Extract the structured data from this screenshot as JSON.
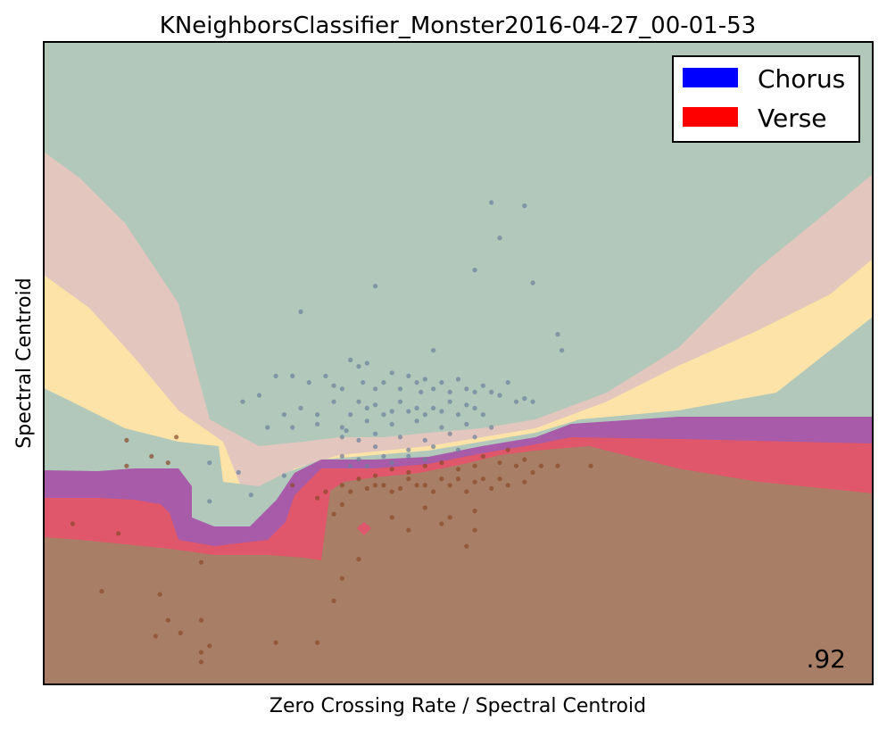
{
  "chart_data": {
    "type": "scatter",
    "title": "KNeighborsClassifier_Monster2016-04-27_00-01-53",
    "xlabel": "Zero Crossing Rate / Spectral Centroid",
    "ylabel": "Spectral Centroid",
    "xlim": [
      0,
      1
    ],
    "ylim": [
      0,
      1
    ],
    "grid": false,
    "ticks": false,
    "legend": {
      "placement": "top-right",
      "entries": [
        {
          "label": "Chorus",
          "color": "#0000ff"
        },
        {
          "label": "Verse",
          "color": "#ff0000"
        }
      ]
    },
    "score": ".92",
    "region_colors": {
      "outer_teal": "#b1c8ba",
      "pink": "#e3c6bd",
      "yellow": "#fde3a7",
      "purple": "#a75ba8",
      "red": "#e0566a",
      "brown": "#a87e66"
    },
    "series": [
      {
        "name": "Chorus",
        "color": "#6b7f9e",
        "points": [
          [
            0.54,
            0.75
          ],
          [
            0.58,
            0.745
          ],
          [
            0.55,
            0.695
          ],
          [
            0.52,
            0.645
          ],
          [
            0.4,
            0.62
          ],
          [
            0.59,
            0.625
          ],
          [
            0.31,
            0.58
          ],
          [
            0.47,
            0.52
          ],
          [
            0.62,
            0.545
          ],
          [
            0.625,
            0.52
          ],
          [
            0.28,
            0.48
          ],
          [
            0.3,
            0.48
          ],
          [
            0.32,
            0.47
          ],
          [
            0.34,
            0.48
          ],
          [
            0.35,
            0.465
          ],
          [
            0.36,
            0.46
          ],
          [
            0.37,
            0.505
          ],
          [
            0.38,
            0.495
          ],
          [
            0.385,
            0.47
          ],
          [
            0.39,
            0.5
          ],
          [
            0.4,
            0.46
          ],
          [
            0.41,
            0.47
          ],
          [
            0.42,
            0.485
          ],
          [
            0.43,
            0.46
          ],
          [
            0.44,
            0.48
          ],
          [
            0.45,
            0.47
          ],
          [
            0.455,
            0.455
          ],
          [
            0.46,
            0.475
          ],
          [
            0.47,
            0.46
          ],
          [
            0.48,
            0.47
          ],
          [
            0.49,
            0.455
          ],
          [
            0.5,
            0.475
          ],
          [
            0.51,
            0.46
          ],
          [
            0.52,
            0.455
          ],
          [
            0.53,
            0.465
          ],
          [
            0.54,
            0.455
          ],
          [
            0.55,
            0.45
          ],
          [
            0.56,
            0.47
          ],
          [
            0.57,
            0.44
          ],
          [
            0.58,
            0.445
          ],
          [
            0.59,
            0.44
          ],
          [
            0.24,
            0.44
          ],
          [
            0.26,
            0.45
          ],
          [
            0.29,
            0.42
          ],
          [
            0.31,
            0.43
          ],
          [
            0.33,
            0.42
          ],
          [
            0.35,
            0.44
          ],
          [
            0.37,
            0.42
          ],
          [
            0.38,
            0.44
          ],
          [
            0.39,
            0.43
          ],
          [
            0.4,
            0.435
          ],
          [
            0.41,
            0.42
          ],
          [
            0.42,
            0.425
          ],
          [
            0.43,
            0.44
          ],
          [
            0.44,
            0.425
          ],
          [
            0.45,
            0.43
          ],
          [
            0.46,
            0.42
          ],
          [
            0.47,
            0.43
          ],
          [
            0.48,
            0.425
          ],
          [
            0.49,
            0.44
          ],
          [
            0.5,
            0.42
          ],
          [
            0.51,
            0.435
          ],
          [
            0.52,
            0.43
          ],
          [
            0.53,
            0.42
          ],
          [
            0.27,
            0.4
          ],
          [
            0.3,
            0.4
          ],
          [
            0.33,
            0.405
          ],
          [
            0.36,
            0.4
          ],
          [
            0.39,
            0.41
          ],
          [
            0.42,
            0.405
          ],
          [
            0.45,
            0.41
          ],
          [
            0.48,
            0.4
          ],
          [
            0.51,
            0.405
          ],
          [
            0.54,
            0.4
          ],
          [
            0.36,
            0.385
          ],
          [
            0.38,
            0.38
          ],
          [
            0.4,
            0.39
          ],
          [
            0.43,
            0.385
          ],
          [
            0.46,
            0.38
          ],
          [
            0.49,
            0.39
          ],
          [
            0.52,
            0.385
          ],
          [
            0.4,
            0.37
          ],
          [
            0.44,
            0.365
          ],
          [
            0.47,
            0.37
          ],
          [
            0.5,
            0.365
          ],
          [
            0.36,
            0.355
          ],
          [
            0.38,
            0.35
          ],
          [
            0.41,
            0.355
          ],
          [
            0.37,
            0.34
          ],
          [
            0.39,
            0.34
          ],
          [
            0.44,
            0.355
          ],
          [
            0.46,
            0.35
          ],
          [
            0.2,
            0.345
          ],
          [
            0.235,
            0.33
          ],
          [
            0.25,
            0.295
          ],
          [
            0.2,
            0.285
          ],
          [
            0.29,
            0.325
          ],
          [
            0.365,
            0.395
          ],
          [
            0.42,
            0.345
          ]
        ]
      },
      {
        "name": "Verse",
        "color": "#8a4a2a",
        "points": [
          [
            0.1,
            0.38
          ],
          [
            0.16,
            0.385
          ],
          [
            0.13,
            0.355
          ],
          [
            0.15,
            0.345
          ],
          [
            0.1,
            0.34
          ],
          [
            0.035,
            0.25
          ],
          [
            0.09,
            0.235
          ],
          [
            0.19,
            0.19
          ],
          [
            0.07,
            0.145
          ],
          [
            0.14,
            0.14
          ],
          [
            0.19,
            0.1
          ],
          [
            0.15,
            0.1
          ],
          [
            0.135,
            0.075
          ],
          [
            0.165,
            0.08
          ],
          [
            0.19,
            0.05
          ],
          [
            0.2,
            0.06
          ],
          [
            0.19,
            0.035
          ],
          [
            0.28,
            0.065
          ],
          [
            0.33,
            0.065
          ],
          [
            0.35,
            0.13
          ],
          [
            0.36,
            0.165
          ],
          [
            0.38,
            0.195
          ],
          [
            0.42,
            0.26
          ],
          [
            0.44,
            0.24
          ],
          [
            0.48,
            0.25
          ],
          [
            0.52,
            0.24
          ],
          [
            0.46,
            0.275
          ],
          [
            0.49,
            0.26
          ],
          [
            0.52,
            0.27
          ],
          [
            0.51,
            0.215
          ],
          [
            0.35,
            0.265
          ],
          [
            0.36,
            0.28
          ],
          [
            0.38,
            0.32
          ],
          [
            0.4,
            0.31
          ],
          [
            0.42,
            0.3
          ],
          [
            0.44,
            0.32
          ],
          [
            0.46,
            0.31
          ],
          [
            0.47,
            0.3
          ],
          [
            0.48,
            0.32
          ],
          [
            0.49,
            0.31
          ],
          [
            0.5,
            0.32
          ],
          [
            0.51,
            0.3
          ],
          [
            0.52,
            0.315
          ],
          [
            0.53,
            0.32
          ],
          [
            0.54,
            0.305
          ],
          [
            0.55,
            0.32
          ],
          [
            0.56,
            0.31
          ],
          [
            0.57,
            0.34
          ],
          [
            0.58,
            0.315
          ],
          [
            0.59,
            0.33
          ],
          [
            0.6,
            0.34
          ],
          [
            0.62,
            0.34
          ],
          [
            0.66,
            0.34
          ],
          [
            0.37,
            0.3
          ],
          [
            0.39,
            0.305
          ],
          [
            0.41,
            0.31
          ],
          [
            0.43,
            0.305
          ],
          [
            0.45,
            0.31
          ],
          [
            0.3,
            0.31
          ],
          [
            0.33,
            0.29
          ],
          [
            0.34,
            0.3
          ],
          [
            0.36,
            0.31
          ],
          [
            0.4,
            0.325
          ],
          [
            0.42,
            0.335
          ],
          [
            0.44,
            0.33
          ],
          [
            0.46,
            0.34
          ],
          [
            0.48,
            0.345
          ],
          [
            0.5,
            0.335
          ],
          [
            0.52,
            0.34
          ],
          [
            0.53,
            0.355
          ],
          [
            0.55,
            0.345
          ],
          [
            0.56,
            0.365
          ],
          [
            0.58,
            0.35
          ]
        ]
      }
    ]
  }
}
